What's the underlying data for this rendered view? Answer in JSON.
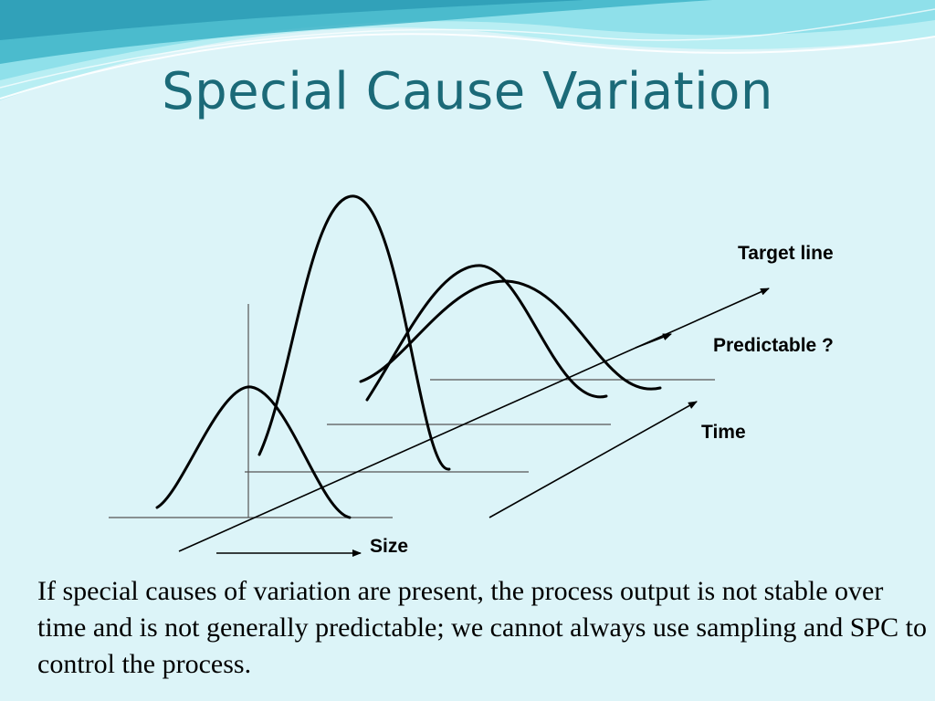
{
  "slide": {
    "title": "Special Cause Variation",
    "body": "If special causes of variation are present, the process output is not stable over time and is not generally predictable; we cannot always use sampling and SPC to control the process."
  },
  "diagram": {
    "labels": {
      "target_line": "Target line",
      "predictable": "Predictable ?",
      "time": "Time",
      "size": "Size"
    }
  },
  "colors": {
    "background": "#dcf4f8",
    "title": "#1b6a78",
    "wave_dark": "#3fb4c8",
    "wave_light": "#8fe0ea"
  }
}
